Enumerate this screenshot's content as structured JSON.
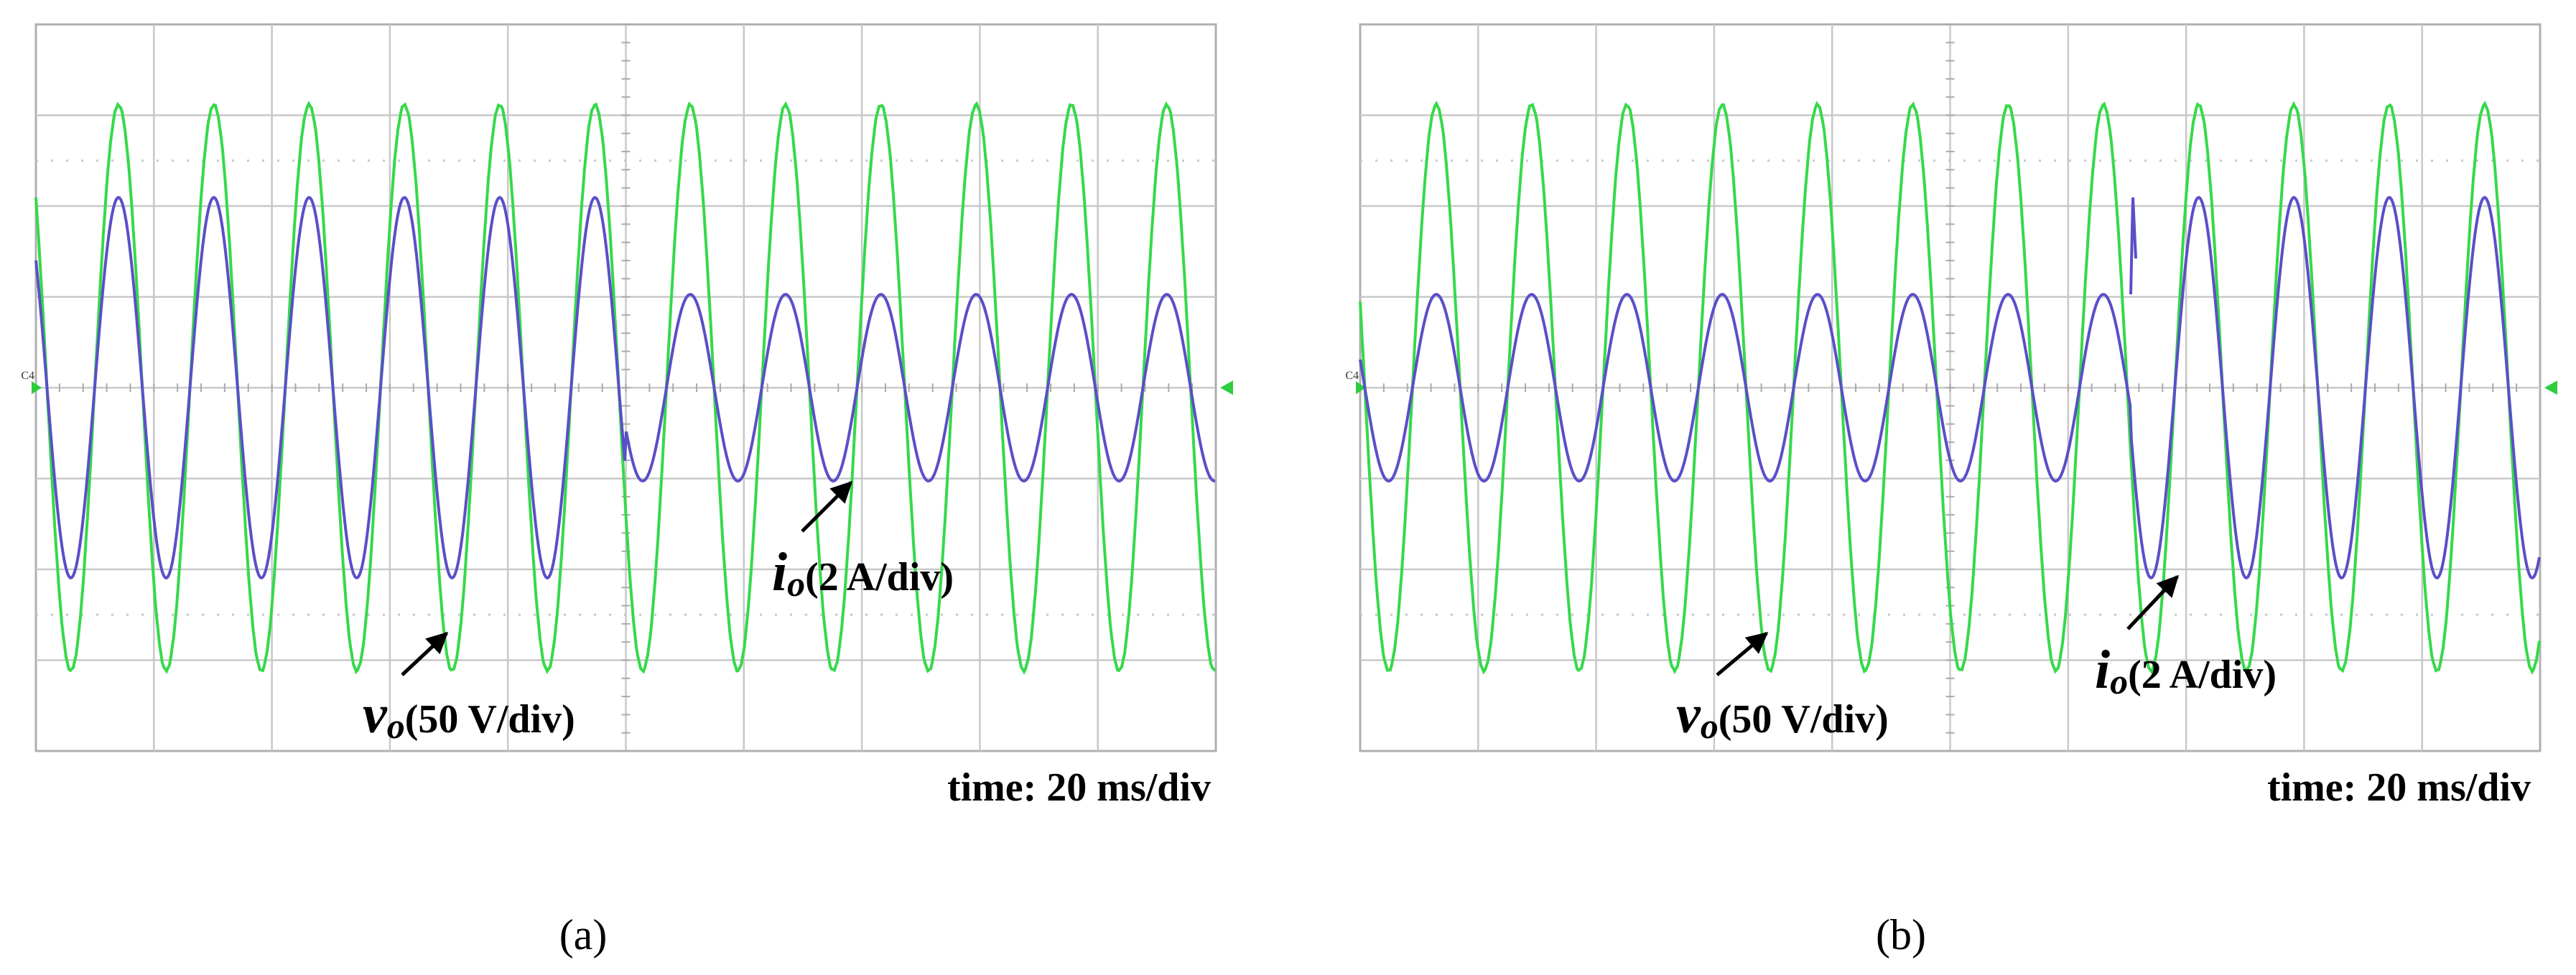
{
  "panels": [
    {
      "label": "(a)",
      "channel_marker": "C4",
      "voltage_label": {
        "symbol": "v",
        "subscript": "o",
        "scale": "(50 V/div)"
      },
      "current_label": {
        "symbol": "i",
        "subscript": "o",
        "scale": "(2 A/div)"
      },
      "time_label": "time: 20 ms/div"
    },
    {
      "label": "(b)",
      "channel_marker": "C4",
      "voltage_label": {
        "symbol": "v",
        "subscript": "o",
        "scale": "(50 V/div)"
      },
      "current_label": {
        "symbol": "i",
        "subscript": "o",
        "scale": "(2 A/div)"
      },
      "time_label": "time: 20 ms/div"
    }
  ]
}
